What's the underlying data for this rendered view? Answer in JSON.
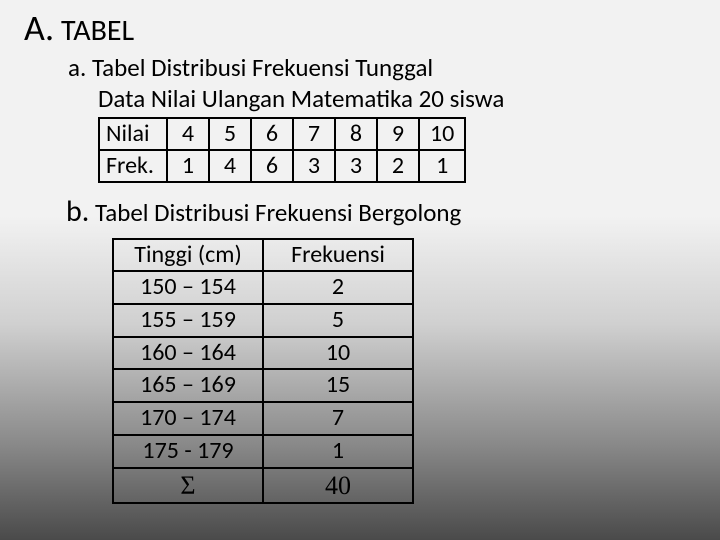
{
  "heading": {
    "letter": "A.",
    "title": "TABEL"
  },
  "section_a": {
    "label": "a.",
    "title": "Tabel Distribusi Frekuensi Tunggal",
    "desc": "Data Nilai Ulangan Matematika 20 siswa",
    "table": {
      "row1_label": "Nilai",
      "row2_label": "Frek.",
      "nilai": [
        "4",
        "5",
        "6",
        "7",
        "8",
        "9",
        "10"
      ],
      "frek": [
        "1",
        "4",
        "6",
        "3",
        "3",
        "2",
        "1"
      ],
      "border_color": "#000000",
      "font_size": 24
    }
  },
  "section_b": {
    "label": "b.",
    "title": "Tabel Distribusi Frekuensi Bergolong",
    "table": {
      "columns": [
        "Tinggi (cm)",
        "Frekuensi"
      ],
      "rows": [
        [
          "150 – 154",
          "2"
        ],
        [
          "155 – 159",
          "5"
        ],
        [
          "160 – 164",
          "10"
        ],
        [
          "165 – 169",
          "15"
        ],
        [
          "170 – 174",
          "7"
        ],
        [
          "175 - 179",
          "1"
        ]
      ],
      "total_label": "Σ",
      "total_value": "40",
      "border_color": "#000000",
      "font_size": 24
    }
  }
}
